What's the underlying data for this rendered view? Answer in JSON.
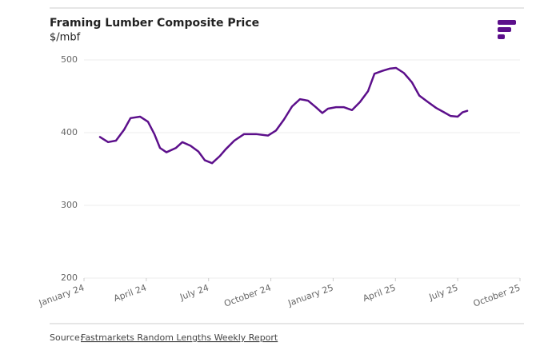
{
  "chart_data": {
    "type": "line",
    "title": "Framing Lumber Composite Price",
    "subtitle": "$/mbf",
    "source_prefix": "Source:",
    "source": "Fastmarkets Random Lengths Weekly Report",
    "x": [
      0.77,
      1.16,
      1.54,
      1.93,
      2.24,
      2.7,
      3.08,
      3.39,
      3.66,
      3.97,
      4.43,
      4.74,
      5.13,
      5.51,
      5.82,
      6.17,
      6.55,
      6.82,
      7.24,
      7.71,
      8.29,
      8.86,
      9.25,
      9.63,
      10.02,
      10.4,
      10.79,
      11.17,
      11.48,
      11.75,
      12.14,
      12.52,
      12.91,
      13.29,
      13.68,
      13.99,
      14.37,
      14.72,
      15.03,
      15.41,
      15.8,
      16.15,
      16.57,
      16.96,
      17.34,
      17.65,
      18.0,
      18.23,
      18.46
    ],
    "series": [
      {
        "name": "Framing Lumber Composite Price",
        "color": "#5c0f8b",
        "values": [
          394,
          387,
          389,
          404,
          420,
          422,
          415,
          398,
          379,
          373,
          379,
          387,
          382,
          374,
          362,
          358,
          368,
          377,
          389,
          398,
          398,
          396,
          403,
          418,
          436,
          446,
          444,
          435,
          427,
          433,
          435,
          435,
          431,
          442,
          457,
          481,
          485,
          488,
          489,
          482,
          469,
          451,
          442,
          434,
          428,
          423,
          422,
          428,
          430
        ]
      }
    ],
    "xlim": [
      0,
      21
    ],
    "xticks": [
      {
        "value": 0,
        "label": "January 24"
      },
      {
        "value": 3,
        "label": "April 24"
      },
      {
        "value": 6,
        "label": "July 24"
      },
      {
        "value": 9,
        "label": "October 24"
      },
      {
        "value": 12,
        "label": "January 25"
      },
      {
        "value": 15,
        "label": "April 25"
      },
      {
        "value": 18,
        "label": "July 25"
      },
      {
        "value": 21,
        "label": "October 25"
      }
    ],
    "ylim": [
      200,
      500
    ],
    "yticks": [
      200,
      300,
      400,
      500
    ],
    "grid": true
  }
}
